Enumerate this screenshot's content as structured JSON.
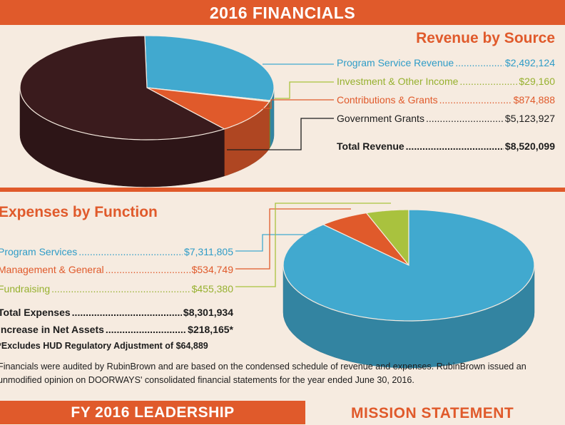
{
  "header": {
    "title": "2016 FINANCIALS"
  },
  "chart_data": [
    {
      "type": "pie",
      "title": "Revenue by Source",
      "legend": "right",
      "slices": [
        {
          "label": "Program Service Revenue",
          "value": 2492124,
          "display": "$2,492,124",
          "color": "#41a9cf"
        },
        {
          "label": "Investment & Other Income",
          "value": 29160,
          "display": "$29,160",
          "color": "#a9c23e"
        },
        {
          "label": "Contributions & Grants",
          "value": 874888,
          "display": "$874,888",
          "color": "#e05a2b"
        },
        {
          "label": "Government Grants",
          "value": 5123927,
          "display": "$5,123,927",
          "color": "#3a1b1d"
        }
      ],
      "total": {
        "label": "Total Revenue",
        "display": "$8,520,099"
      }
    },
    {
      "type": "pie",
      "title": "Expenses by Function",
      "legend": "left",
      "slices": [
        {
          "label": "Program Services",
          "value": 7311805,
          "display": "$7,311,805",
          "color": "#41a9cf"
        },
        {
          "label": "Management & General",
          "value": 534749,
          "display": "$534,749",
          "color": "#e05a2b"
        },
        {
          "label": "Fundraising",
          "value": 455380,
          "display": "$455,380",
          "color": "#a9c23e"
        }
      ],
      "total": {
        "label": "Total Expenses",
        "display": "$8,301,934"
      },
      "net": {
        "label": "Increase in Net Assets",
        "display": "$218,165*"
      },
      "note": "*Excludes HUD Regulatory Adjustment of $64,889"
    }
  ],
  "footnote": "Financials were audited by RubinBrown and are based on the condensed schedule of revenue and expenses. RubinBrown issued an unmodified opinion on DOORWAYS' consolidated financial statements for the year ended June 30, 2016.",
  "bottom": {
    "leadership": "FY 2016 LEADERSHIP",
    "mission": "MISSION STATEMENT"
  }
}
